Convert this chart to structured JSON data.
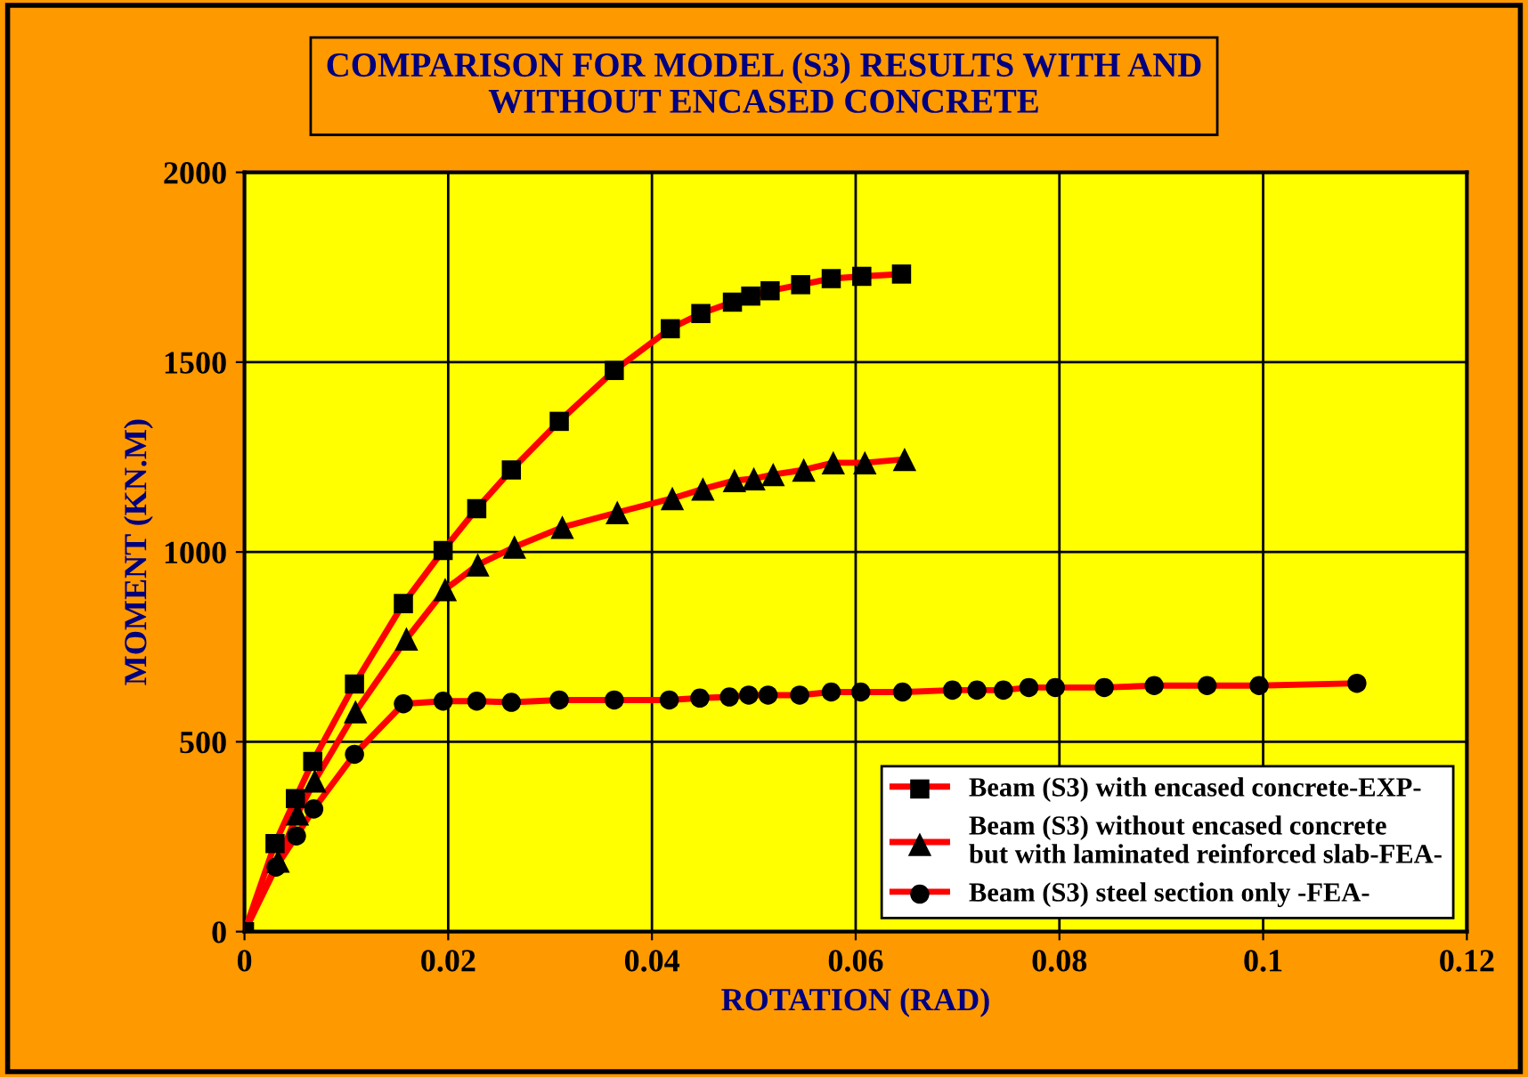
{
  "chart_data": {
    "type": "line",
    "title": "COMPARISON FOR MODEL (S3) RESULTS WITH AND\nWITHOUT ENCASED CONCRETE",
    "xlabel": "ROTATION (RAD)",
    "ylabel": "MOMENT (KN.M)",
    "xlim": [
      0,
      0.12
    ],
    "ylim": [
      0,
      2000
    ],
    "xticks": [
      0,
      0.02,
      0.04,
      0.06,
      0.08,
      0.1,
      0.12
    ],
    "yticks": [
      0,
      500,
      1000,
      1500,
      2000
    ],
    "grid": true,
    "legend": "bottom right",
    "series": [
      {
        "name": "Beam (S3) with encased concrete-EXP-",
        "color": "#ff0000",
        "marker": "square",
        "x": [
          0,
          0.003,
          0.005,
          0.0067,
          0.0108,
          0.0156,
          0.0195,
          0.0228,
          0.0262,
          0.0309,
          0.0363,
          0.0418,
          0.0448,
          0.0479,
          0.0497,
          0.0516,
          0.0546,
          0.0576,
          0.0606,
          0.0645
        ],
        "values": [
          0,
          232,
          350,
          448,
          652,
          864,
          1004,
          1114,
          1216,
          1344,
          1478,
          1588,
          1628,
          1658,
          1674,
          1688,
          1704,
          1720,
          1726,
          1732
        ]
      },
      {
        "name": "Beam (S3) without encased concrete\nbut with laminated reinforced slab-FEA-",
        "color": "#ff0000",
        "marker": "triangle",
        "x": [
          0,
          0.0033,
          0.0052,
          0.0069,
          0.0109,
          0.0159,
          0.0197,
          0.0229,
          0.0265,
          0.0312,
          0.0366,
          0.042,
          0.045,
          0.0481,
          0.05,
          0.0519,
          0.0549,
          0.0578,
          0.0609,
          0.0648
        ],
        "values": [
          0,
          186,
          310,
          397,
          579,
          771,
          901,
          966,
          1013,
          1065,
          1104,
          1141,
          1166,
          1188,
          1193,
          1204,
          1216,
          1235,
          1235,
          1244
        ]
      },
      {
        "name": "Beam (S3) steel section only -FEA-",
        "color": "#ff0000",
        "marker": "circle",
        "x": [
          0,
          0.0031,
          0.0051,
          0.0068,
          0.0108,
          0.0156,
          0.0195,
          0.0228,
          0.0262,
          0.0309,
          0.0363,
          0.0417,
          0.0447,
          0.0476,
          0.0495,
          0.0514,
          0.0545,
          0.0576,
          0.0605,
          0.0646,
          0.0695,
          0.0719,
          0.0745,
          0.077,
          0.0796,
          0.0844,
          0.0893,
          0.0945,
          0.0996,
          0.1092
        ],
        "values": [
          0,
          170,
          252,
          323,
          467,
          600,
          607,
          607,
          604,
          610,
          610,
          610,
          615,
          618,
          623,
          623,
          623,
          631,
          631,
          631,
          636,
          636,
          636,
          643,
          643,
          643,
          648,
          648,
          648,
          654
        ]
      }
    ]
  }
}
